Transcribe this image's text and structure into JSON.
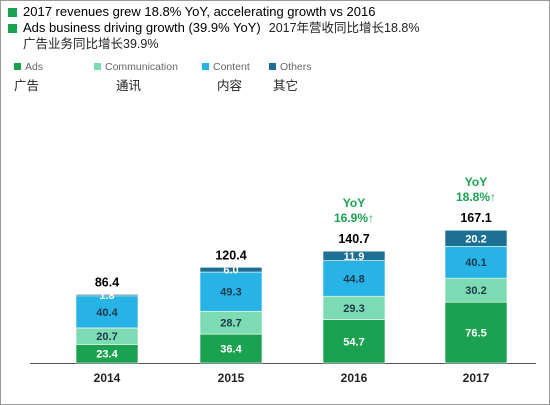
{
  "headline": {
    "bullet1": "2017 revenues grew 18.8% YoY, accelerating growth vs 2016",
    "bullet2": "Ads business driving growth (39.9% YoY)",
    "bullet2_cn": "2017年营收同比增长18.8%",
    "bullet2_cn_sub": "广告业务同比增长39.9%"
  },
  "legend": [
    {
      "en": "Ads",
      "cn": "广告",
      "color": "#1aa251"
    },
    {
      "en": "Communication",
      "cn": "通讯",
      "color": "#7ddbb3"
    },
    {
      "en": "Content",
      "cn": "内容",
      "color": "#27b3e6"
    },
    {
      "en": "Others",
      "cn": "其它",
      "color": "#1d6f93"
    }
  ],
  "chart_data": {
    "type": "bar",
    "stacked": true,
    "categories": [
      "2014",
      "2015",
      "2016",
      "2017"
    ],
    "series": [
      {
        "name": "Ads",
        "values": [
          23.4,
          36.4,
          54.7,
          76.5
        ],
        "color": "#1aa251",
        "label_color": "#ffffff"
      },
      {
        "name": "Communication",
        "values": [
          20.7,
          28.7,
          29.3,
          30.2
        ],
        "color": "#7ddbb3",
        "label_color": "#1b3a4b"
      },
      {
        "name": "Content",
        "values": [
          40.4,
          49.3,
          44.8,
          40.1
        ],
        "color": "#27b3e6",
        "label_color": "#1b3a4b"
      },
      {
        "name": "Others",
        "values": [
          1.8,
          6.0,
          11.9,
          20.2
        ],
        "color": "#1d6f93",
        "label_color": "#ffffff"
      }
    ],
    "totals": [
      86.4,
      120.4,
      140.7,
      167.1
    ],
    "annotations": [
      {
        "category": "2016",
        "line1": "YoY",
        "line2": "16.9%↑"
      },
      {
        "category": "2017",
        "line1": "YoY",
        "line2": "18.8%↑"
      }
    ],
    "annotation_color": "#1aa251",
    "axis_color": "#555555",
    "title": "",
    "xlabel": "",
    "ylabel": "",
    "grid": false
  }
}
